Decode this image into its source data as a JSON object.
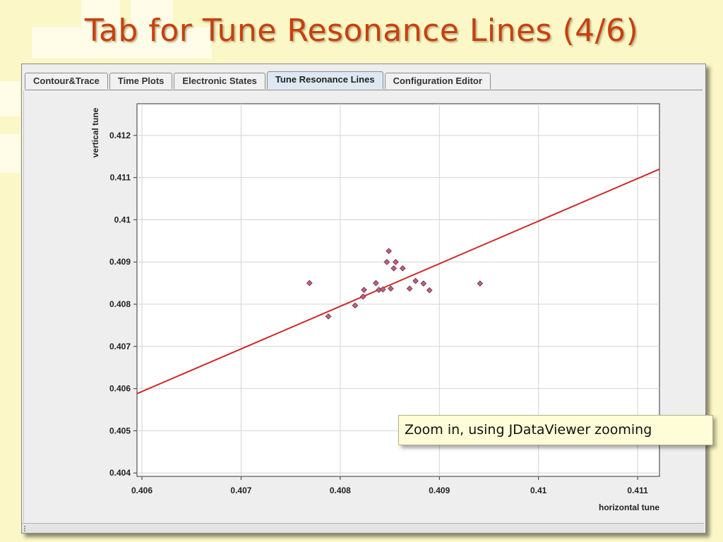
{
  "slide": {
    "title": "Tab for Tune Resonance Lines (4/6)"
  },
  "tabs": [
    {
      "label": "Contour&Trace",
      "active": false
    },
    {
      "label": "Time Plots",
      "active": false
    },
    {
      "label": "Electronic States",
      "active": false
    },
    {
      "label": "Tune Resonance Lines",
      "active": true
    },
    {
      "label": "Configuration Editor",
      "active": false
    }
  ],
  "callout": {
    "text": "Zoom in, using JDataViewer zooming"
  },
  "colors": {
    "title": "#c8400e",
    "line": "#cc2a2a",
    "marker": "#c0607c",
    "background": "#fbf7c6"
  },
  "chart_data": {
    "type": "scatter",
    "xlabel": "horizontal tune",
    "ylabel": "vertical tune",
    "xlim": [
      0.40595,
      0.41122
    ],
    "ylim": [
      0.40392,
      0.41275
    ],
    "grid": true,
    "x_ticks": [
      {
        "value": 0.406,
        "label": "0.406"
      },
      {
        "value": 0.407,
        "label": "0.407"
      },
      {
        "value": 0.408,
        "label": "0.408"
      },
      {
        "value": 0.409,
        "label": "0.409"
      },
      {
        "value": 0.41,
        "label": "0.41"
      },
      {
        "value": 0.411,
        "label": "0.411"
      }
    ],
    "y_ticks": [
      {
        "value": 0.404,
        "label": "0.404"
      },
      {
        "value": 0.405,
        "label": "0.405"
      },
      {
        "value": 0.406,
        "label": "0.406"
      },
      {
        "value": 0.407,
        "label": "0.407"
      },
      {
        "value": 0.408,
        "label": "0.408"
      },
      {
        "value": 0.409,
        "label": "0.409"
      },
      {
        "value": 0.41,
        "label": "0.41"
      },
      {
        "value": 0.411,
        "label": "0.411"
      },
      {
        "value": 0.412,
        "label": "0.412"
      }
    ],
    "line": {
      "from": [
        0.40595,
        0.40588
      ],
      "to": [
        0.41122,
        0.4112
      ]
    },
    "points": [
      {
        "x": 0.40769,
        "y": 0.4085
      },
      {
        "x": 0.40788,
        "y": 0.40771
      },
      {
        "x": 0.40815,
        "y": 0.40797
      },
      {
        "x": 0.40823,
        "y": 0.40818
      },
      {
        "x": 0.40824,
        "y": 0.40834
      },
      {
        "x": 0.40836,
        "y": 0.4085
      },
      {
        "x": 0.40839,
        "y": 0.40834
      },
      {
        "x": 0.40843,
        "y": 0.40835
      },
      {
        "x": 0.40847,
        "y": 0.409
      },
      {
        "x": 0.40849,
        "y": 0.40926
      },
      {
        "x": 0.40851,
        "y": 0.40837
      },
      {
        "x": 0.40854,
        "y": 0.40885
      },
      {
        "x": 0.40856,
        "y": 0.409
      },
      {
        "x": 0.40863,
        "y": 0.40885
      },
      {
        "x": 0.4087,
        "y": 0.40837
      },
      {
        "x": 0.40876,
        "y": 0.40855
      },
      {
        "x": 0.40884,
        "y": 0.40849
      },
      {
        "x": 0.4089,
        "y": 0.40833
      },
      {
        "x": 0.40941,
        "y": 0.40849
      }
    ]
  }
}
